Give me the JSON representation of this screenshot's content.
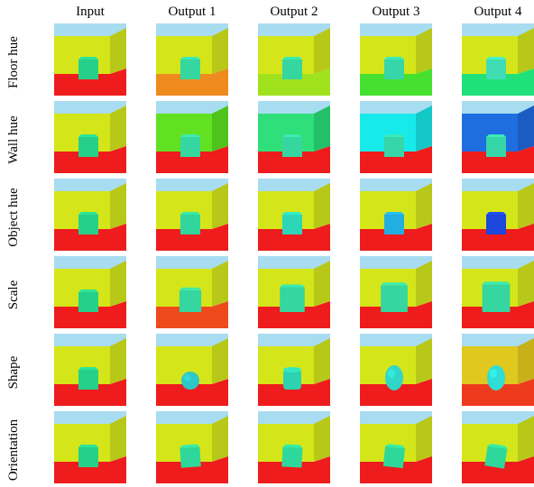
{
  "columns": [
    "Input",
    "Output 1",
    "Output 2",
    "Output 3",
    "Output 4"
  ],
  "rows": [
    {
      "label": "Floor hue",
      "cells": [
        {
          "sky": "#a8dcf0",
          "wall": "#d4e619",
          "side": "#b8c818",
          "floor": "#ee1c1c",
          "object": "#27d08a",
          "shape": "cube"
        },
        {
          "sky": "#a8dcf0",
          "wall": "#d4e619",
          "side": "#b8c818",
          "floor": "#ee8a1e",
          "object": "#36d6a0",
          "shape": "cube"
        },
        {
          "sky": "#a8dcf0",
          "wall": "#d4e619",
          "side": "#b8c818",
          "floor": "#a0e21e",
          "object": "#36d6a0",
          "shape": "cube"
        },
        {
          "sky": "#a8dcf0",
          "wall": "#d4e619",
          "side": "#b8c818",
          "floor": "#45e030",
          "object": "#36d6a8",
          "shape": "cube"
        },
        {
          "sky": "#a8dcf0",
          "wall": "#d4e619",
          "side": "#b8c818",
          "floor": "#1ee17a",
          "object": "#40dcb4",
          "shape": "cube"
        }
      ]
    },
    {
      "label": "Wall hue",
      "cells": [
        {
          "sky": "#a8dcf0",
          "wall": "#d4e619",
          "side": "#b8c818",
          "floor": "#ee1c1c",
          "object": "#27d08a",
          "shape": "cube"
        },
        {
          "sky": "#a8dcf0",
          "wall": "#62e022",
          "side": "#4ec41a",
          "floor": "#ee1c1c",
          "object": "#36d6a0",
          "shape": "cube"
        },
        {
          "sky": "#a8dcf0",
          "wall": "#2fe07a",
          "side": "#22c068",
          "floor": "#ee1c1c",
          "object": "#36d6a0",
          "shape": "cube"
        },
        {
          "sky": "#a8dcf0",
          "wall": "#18eaea",
          "side": "#14c8c8",
          "floor": "#ee1c1c",
          "object": "#36d6a8",
          "shape": "cube"
        },
        {
          "sky": "#a8dcf0",
          "wall": "#1e6ee0",
          "side": "#1a5cc2",
          "floor": "#ee1c1c",
          "object": "#36d6a8",
          "shape": "cube"
        }
      ]
    },
    {
      "label": "Object hue",
      "cells": [
        {
          "sky": "#a8dcf0",
          "wall": "#d4e619",
          "side": "#b8c818",
          "floor": "#ee1c1c",
          "object": "#27d08a",
          "shape": "cube"
        },
        {
          "sky": "#a8dcf0",
          "wall": "#d4e619",
          "side": "#b8c818",
          "floor": "#ee1c1c",
          "object": "#30d69c",
          "shape": "cube"
        },
        {
          "sky": "#a8dcf0",
          "wall": "#d4e619",
          "side": "#b8c818",
          "floor": "#ee1c1c",
          "object": "#2ed6b8",
          "shape": "cube"
        },
        {
          "sky": "#a8dcf0",
          "wall": "#d4e619",
          "side": "#b8c818",
          "floor": "#ee1c1c",
          "object": "#22aee0",
          "shape": "cube"
        },
        {
          "sky": "#a8dcf0",
          "wall": "#d4e619",
          "side": "#b8c818",
          "floor": "#ee1c1c",
          "object": "#1c46dc",
          "shape": "cube"
        }
      ]
    },
    {
      "label": "Scale",
      "cells": [
        {
          "sky": "#a8dcf0",
          "wall": "#d4e619",
          "side": "#b8c818",
          "floor": "#ee1c1c",
          "object": "#27d08a",
          "shape": "cube",
          "scale": 1.0
        },
        {
          "sky": "#a8dcf0",
          "wall": "#d4e619",
          "side": "#b8c818",
          "floor": "#ee4a1c",
          "object": "#36d6a0",
          "shape": "cube",
          "scale": 1.1
        },
        {
          "sky": "#a8dcf0",
          "wall": "#d4e619",
          "side": "#b8c818",
          "floor": "#ee1c1c",
          "object": "#36d6a0",
          "shape": "cube",
          "scale": 1.25
        },
        {
          "sky": "#a8dcf0",
          "wall": "#d4e619",
          "side": "#b8c818",
          "floor": "#ee1c1c",
          "object": "#36d6a0",
          "shape": "cube",
          "scale": 1.35
        },
        {
          "sky": "#a8dcf0",
          "wall": "#d4e619",
          "side": "#b8c818",
          "floor": "#ee1c1c",
          "object": "#36d6a0",
          "shape": "cube",
          "scale": 1.4
        }
      ]
    },
    {
      "label": "Shape",
      "cells": [
        {
          "sky": "#a8dcf0",
          "wall": "#d4e619",
          "side": "#b8c818",
          "floor": "#ee1c1c",
          "object": "#27d08a",
          "shape": "cube"
        },
        {
          "sky": "#a8dcf0",
          "wall": "#d4e619",
          "side": "#b8c818",
          "floor": "#ee1c1c",
          "object": "#2ec6c6",
          "shape": "sphere"
        },
        {
          "sky": "#a8dcf0",
          "wall": "#d4e619",
          "side": "#b8c818",
          "floor": "#ee1c1c",
          "object": "#2ed2b0",
          "shape": "cylinder"
        },
        {
          "sky": "#a8dcf0",
          "wall": "#d4e619",
          "side": "#b8c818",
          "floor": "#ee1c1c",
          "object": "#30d6c8",
          "shape": "capsule"
        },
        {
          "sky": "#a8dcf0",
          "wall": "#e0c81e",
          "side": "#c8b01a",
          "floor": "#ee3a1c",
          "object": "#30dcd6",
          "shape": "capsule"
        }
      ]
    },
    {
      "label": "Orientation",
      "cells": [
        {
          "sky": "#a8dcf0",
          "wall": "#d4e619",
          "side": "#b8c818",
          "floor": "#ee1c1c",
          "object": "#27d08a",
          "shape": "cube",
          "rotate": 0
        },
        {
          "sky": "#a8dcf0",
          "wall": "#d4e619",
          "side": "#b8c818",
          "floor": "#ee1c1c",
          "object": "#2ed89a",
          "shape": "cube",
          "rotate": -4
        },
        {
          "sky": "#a8dcf0",
          "wall": "#d4e619",
          "side": "#b8c818",
          "floor": "#ee1c1c",
          "object": "#2ed89a",
          "shape": "cube",
          "rotate": 3
        },
        {
          "sky": "#a8dcf0",
          "wall": "#d4e619",
          "side": "#b8c818",
          "floor": "#ee1c1c",
          "object": "#2ed89a",
          "shape": "cube",
          "rotate": 6
        },
        {
          "sky": "#a8dcf0",
          "wall": "#d4e619",
          "side": "#b8c818",
          "floor": "#ee1c1c",
          "object": "#2ed89a",
          "shape": "cube",
          "rotate": 9
        }
      ]
    }
  ]
}
